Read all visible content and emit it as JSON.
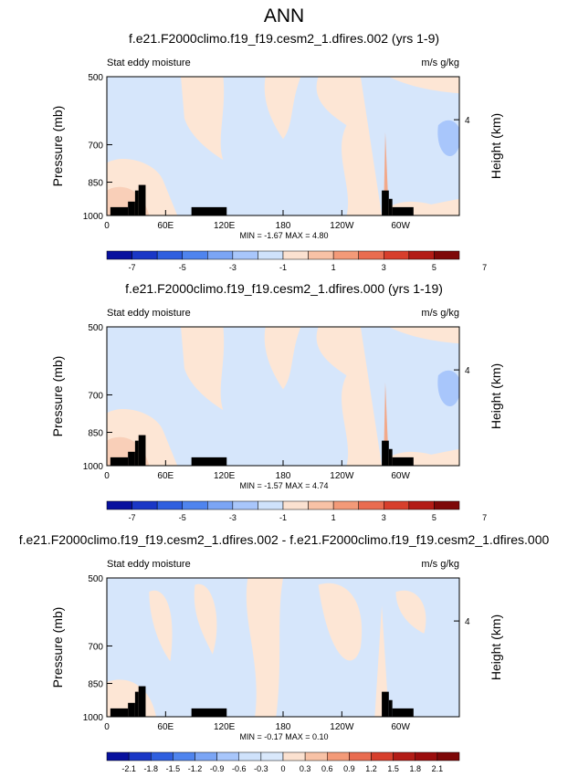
{
  "figure": {
    "title": "ANN"
  },
  "chart_data": [
    {
      "type": "heatmap",
      "title": "f.e21.F2000climo.f19_f19.cesm2_1.dfires.002 (yrs 1-9)",
      "left_label": "Stat eddy moisture",
      "right_label": "m/s g/kg",
      "ylabel": "Pressure (mb)",
      "ylabel_right": "Height (km)",
      "x_ticks": [
        "0",
        "60E",
        "120E",
        "180",
        "120W",
        "60W"
      ],
      "y_ticks": [
        "500",
        "700",
        "850",
        "1000"
      ],
      "y_right_ticks": [
        "4"
      ],
      "stats": "MIN = -1.67   MAX =  4.80",
      "colorbar": {
        "labels": [
          "-7",
          "-5",
          "-3",
          "-1",
          "1",
          "3",
          "5",
          "7"
        ],
        "colors": [
          "#08119e",
          "#1a37c6",
          "#2f5fdf",
          "#4f84ee",
          "#7ba5f5",
          "#a8c6fb",
          "#cfe2fb",
          "#fbe1d0",
          "#f8c2a6",
          "#f39a78",
          "#e96c50",
          "#d73f2c",
          "#b31c16",
          "#7e0808"
        ]
      },
      "features": {
        "negative_blob": true
      }
    },
    {
      "type": "heatmap",
      "title": "f.e21.F2000climo.f19_f19.cesm2_1.dfires.000 (yrs 1-19)",
      "left_label": "Stat eddy moisture",
      "right_label": "m/s g/kg",
      "ylabel": "Pressure (mb)",
      "ylabel_right": "Height (km)",
      "x_ticks": [
        "0",
        "60E",
        "120E",
        "180",
        "120W",
        "60W"
      ],
      "y_ticks": [
        "500",
        "700",
        "850",
        "1000"
      ],
      "y_right_ticks": [
        "4"
      ],
      "stats": "MIN = -1.57   MAX =  4.74",
      "colorbar": {
        "labels": [
          "-7",
          "-5",
          "-3",
          "-1",
          "1",
          "3",
          "5",
          "7"
        ],
        "colors": [
          "#08119e",
          "#1a37c6",
          "#2f5fdf",
          "#4f84ee",
          "#7ba5f5",
          "#a8c6fb",
          "#cfe2fb",
          "#fbe1d0",
          "#f8c2a6",
          "#f39a78",
          "#e96c50",
          "#d73f2c",
          "#b31c16",
          "#7e0808"
        ]
      },
      "features": {
        "negative_blob": true
      }
    },
    {
      "type": "heatmap",
      "title": "f.e21.F2000climo.f19_f19.cesm2_1.dfires.002 - f.e21.F2000climo.f19_f19.cesm2_1.dfires.000",
      "left_label": "Stat eddy moisture",
      "right_label": "m/s g/kg",
      "ylabel": "Pressure (mb)",
      "ylabel_right": "Height (km)",
      "x_ticks": [
        "0",
        "60E",
        "120E",
        "180",
        "120W",
        "60W"
      ],
      "y_ticks": [
        "500",
        "700",
        "850",
        "1000"
      ],
      "y_right_ticks": [
        "4"
      ],
      "stats": "MIN = -0.17   MAX =  0.10",
      "colorbar": {
        "labels": [
          "-2.1",
          "-1.8",
          "-1.5",
          "-1.2",
          "-0.9",
          "-0.6",
          "-0.3",
          "0",
          "0.3",
          "0.6",
          "0.9",
          "1.2",
          "1.5",
          "1.8",
          "2.1"
        ],
        "colors": [
          "#08119e",
          "#1a37c6",
          "#2f5fdf",
          "#4f84ee",
          "#7ba5f5",
          "#a8c6fb",
          "#cfe2fb",
          "#d9e8fb",
          "#fbe1d0",
          "#f8c2a6",
          "#f39a78",
          "#e96c50",
          "#d73f2c",
          "#b31c16",
          "#9b0d0d",
          "#7e0808"
        ]
      },
      "features": {
        "negative_blob": false
      }
    }
  ]
}
